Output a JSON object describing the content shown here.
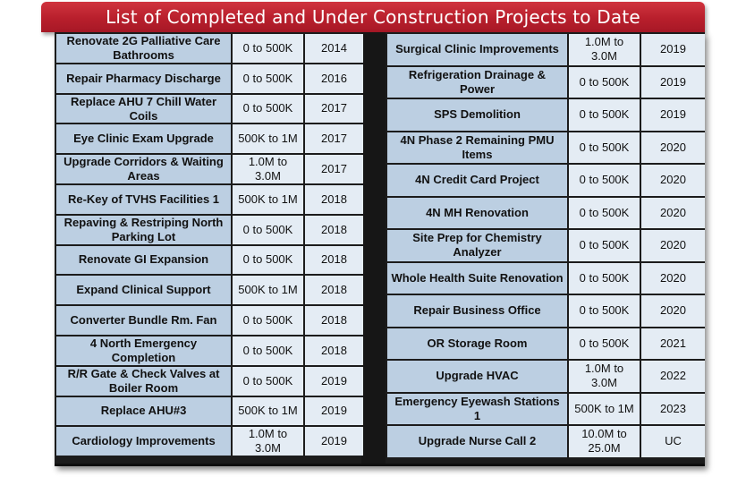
{
  "title": "List of Completed and Under Construction Projects to Date",
  "colors": {
    "banner": "#b81f2c",
    "cell_dark": "#bccfe2",
    "cell_light": "#e4ecf4",
    "frame": "#1c1c1c"
  },
  "left_table": [
    {
      "name": "Renovate 2G Palliative Care Bathrooms",
      "cost": "0 to 500K",
      "year": "2014"
    },
    {
      "name": "Repair Pharmacy Discharge",
      "cost": "0 to 500K",
      "year": "2016"
    },
    {
      "name": "Replace AHU 7 Chill Water Coils",
      "cost": "0 to 500K",
      "year": "2017"
    },
    {
      "name": "Eye Clinic Exam Upgrade",
      "cost": "500K to 1M",
      "year": "2017"
    },
    {
      "name": "Upgrade Corridors & Waiting Areas",
      "cost": "1.0M to 3.0M",
      "year": "2017"
    },
    {
      "name": "Re-Key of TVHS Facilities 1",
      "cost": "500K to 1M",
      "year": "2018"
    },
    {
      "name": "Repaving & Restriping North Parking Lot",
      "cost": "0 to 500K",
      "year": "2018"
    },
    {
      "name": "Renovate GI Expansion",
      "cost": "0 to 500K",
      "year": "2018"
    },
    {
      "name": "Expand Clinical Support",
      "cost": "500K to 1M",
      "year": "2018"
    },
    {
      "name": "Converter Bundle Rm. Fan",
      "cost": "0 to 500K",
      "year": "2018"
    },
    {
      "name": "4 North Emergency Completion",
      "cost": "0 to 500K",
      "year": "2018"
    },
    {
      "name": "R/R Gate & Check Valves at Boiler Room",
      "cost": "0 to 500K",
      "year": "2019"
    },
    {
      "name": "Replace AHU#3",
      "cost": "500K to 1M",
      "year": "2019"
    },
    {
      "name": "Cardiology Improvements",
      "cost": "1.0M to 3.0M",
      "year": "2019"
    }
  ],
  "right_table": [
    {
      "name": "Surgical Clinic Improvements",
      "cost": "1.0M to 3.0M",
      "year": "2019"
    },
    {
      "name": "Refrigeration Drainage & Power",
      "cost": "0 to 500K",
      "year": "2019"
    },
    {
      "name": "SPS Demolition",
      "cost": "0 to 500K",
      "year": "2019"
    },
    {
      "name": "4N Phase 2 Remaining PMU Items",
      "cost": "0 to 500K",
      "year": "2020"
    },
    {
      "name": "4N Credit Card Project",
      "cost": "0 to 500K",
      "year": "2020"
    },
    {
      "name": "4N MH Renovation",
      "cost": "0 to 500K",
      "year": "2020"
    },
    {
      "name": "Site Prep for Chemistry Analyzer",
      "cost": "0 to 500K",
      "year": "2020"
    },
    {
      "name": "Whole Health Suite Renovation",
      "cost": "0 to 500K",
      "year": "2020"
    },
    {
      "name": "Repair Business Office",
      "cost": "0 to 500K",
      "year": "2020"
    },
    {
      "name": "OR Storage Room",
      "cost": "0 to 500K",
      "year": "2021"
    },
    {
      "name": "Upgrade HVAC",
      "cost": "1.0M to 3.0M",
      "year": "2022"
    },
    {
      "name": "Emergency Eyewash Stations 1",
      "cost": "500K to 1M",
      "year": "2023"
    },
    {
      "name": "Upgrade Nurse Call 2",
      "cost": "10.0M to 25.0M",
      "year": "UC"
    }
  ]
}
